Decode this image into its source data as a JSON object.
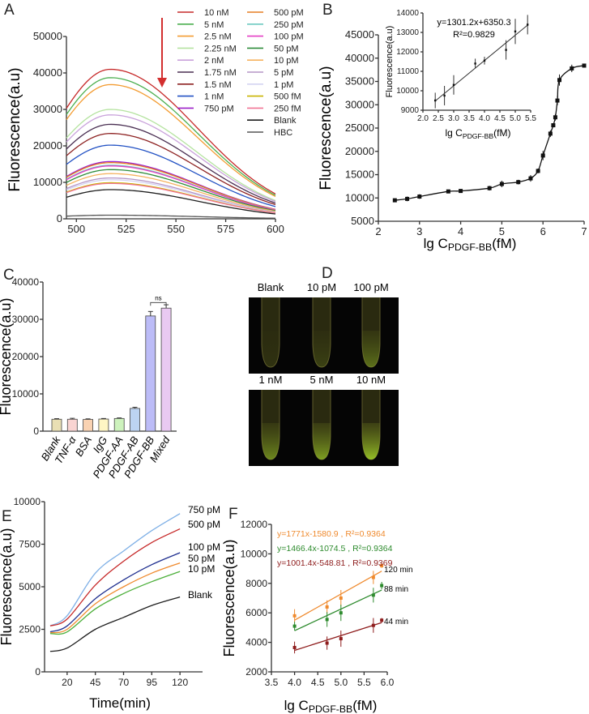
{
  "chart_data": [
    {
      "panel": "A",
      "type": "line",
      "xlabel": "",
      "ylabel": "Fluorescence(a.u)",
      "xlim": [
        495,
        600
      ],
      "ylim": [
        0,
        50000
      ],
      "xticks": [
        "500",
        "525",
        "550",
        "575",
        "600"
      ],
      "yticks": [
        "0",
        "10000",
        "20000",
        "30000",
        "40000",
        "50000"
      ],
      "peak_x": 517,
      "series": [
        {
          "name": "10 nM",
          "peak": 41000,
          "color": "#c62828"
        },
        {
          "name": "5 nM",
          "peak": 38700,
          "color": "#4caf50"
        },
        {
          "name": "2.5 nM",
          "peak": 36800,
          "color": "#f39c32"
        },
        {
          "name": "2.25 nM",
          "peak": 30000,
          "color": "#b5e3a0"
        },
        {
          "name": "2 nM",
          "peak": 28500,
          "color": "#c9a2db"
        },
        {
          "name": "1.75 nM",
          "peak": 25900,
          "color": "#4a2f52"
        },
        {
          "name": "1.5 nM",
          "peak": 23400,
          "color": "#8e2323"
        },
        {
          "name": "1 nM",
          "peak": 20200,
          "color": "#2352c4"
        },
        {
          "name": "750 pM",
          "peak": 15700,
          "color": "#9b1fc8"
        },
        {
          "name": "500 pM",
          "peak": 15400,
          "color": "#e67e22"
        },
        {
          "name": "250 pM",
          "peak": 14700,
          "color": "#6ec9c0"
        },
        {
          "name": "100 pM",
          "peak": 14500,
          "color": "#e53fc5"
        },
        {
          "name": "50 pM",
          "peak": 13500,
          "color": "#2e8b3a"
        },
        {
          "name": "10 pM",
          "peak": 12400,
          "color": "#f5b25f"
        },
        {
          "name": "5 pM",
          "peak": 11200,
          "color": "#b595c6"
        },
        {
          "name": "1 pM",
          "peak": 10700,
          "color": "#d4d4f2"
        },
        {
          "name": "500 fM",
          "peak": 9900,
          "color": "#c9b400"
        },
        {
          "name": "250 fM",
          "peak": 9700,
          "color": "#f07595"
        },
        {
          "name": "Blank",
          "peak": 8000,
          "color": "#1e1e1e"
        },
        {
          "name": "HBC",
          "peak": 1000,
          "color": "#555555"
        }
      ]
    },
    {
      "panel": "B",
      "type": "scatter",
      "xlabel": {
        "main": "lg C",
        "sub": "PDGF-BB",
        "unit": "(fM)"
      },
      "ylabel": "Fluorescence(a.u)",
      "xlim": [
        2,
        7
      ],
      "ylim": [
        5000,
        45000
      ],
      "xticks": [
        "2",
        "3",
        "4",
        "5",
        "6",
        "7"
      ],
      "yticks": [
        "5000",
        "10000",
        "15000",
        "20000",
        "25000",
        "30000",
        "35000",
        "40000",
        "45000"
      ],
      "x": [
        2.4,
        2.7,
        3.0,
        3.7,
        4.0,
        4.7,
        5.0,
        5.4,
        5.7,
        5.88,
        6.0,
        6.18,
        6.25,
        6.3,
        6.35,
        6.4,
        6.7,
        7.0
      ],
      "y": [
        9500,
        9800,
        10300,
        11400,
        11500,
        12100,
        13000,
        13400,
        14200,
        15800,
        19100,
        23800,
        25600,
        27300,
        30900,
        35300,
        37800,
        38400
      ],
      "err": [
        400,
        500,
        500,
        200,
        200,
        500,
        700,
        500,
        700,
        500,
        1000,
        700,
        400,
        700,
        1000,
        1200,
        800,
        400
      ],
      "inset": {
        "type": "scatter",
        "xlabel": {
          "main": "lg C",
          "sub": "PDGF-BB",
          "unit": "(fM)"
        },
        "ylabel": "Fluorescence(a.u)",
        "xlim": [
          2.0,
          5.5
        ],
        "ylim": [
          9000,
          14000
        ],
        "xticks": [
          "2.0",
          "2.5",
          "3.0",
          "3.5",
          "4.0",
          "4.5",
          "5.0",
          "5.5"
        ],
        "yticks": [
          "9000",
          "10000",
          "11000",
          "12000",
          "13000",
          "14000"
        ],
        "x": [
          2.4,
          2.7,
          3.0,
          3.7,
          4.0,
          4.7,
          5.0,
          5.4
        ],
        "y": [
          9500,
          9750,
          10300,
          11400,
          11550,
          12100,
          13050,
          13400
        ],
        "err": [
          400,
          500,
          500,
          250,
          200,
          500,
          650,
          500
        ],
        "fit": {
          "slope": 1301.2,
          "intercept": 6350.3
        },
        "equation": "y=1301.2x+6350.3",
        "r2": "R²=0.9829"
      }
    },
    {
      "panel": "C",
      "type": "bar",
      "ylabel": "Fluorescence(a.u)",
      "ylim": [
        0,
        40000
      ],
      "yticks": [
        "0",
        "10000",
        "20000",
        "30000",
        "40000"
      ],
      "categories": [
        "Blank",
        "TNF-α",
        "BSA",
        "IgG",
        "PDGF-AA",
        "PDGF-AB",
        "PDGF-BB",
        "Mixed"
      ],
      "values": [
        3200,
        3200,
        3150,
        3250,
        3400,
        6100,
        30900,
        33000
      ],
      "err": [
        150,
        250,
        150,
        150,
        150,
        300,
        1200,
        900
      ],
      "colors": [
        "#e9dfb4",
        "#f9d4d2",
        "#f9d2b2",
        "#fff6c4",
        "#cdf2bd",
        "#bcd3f2",
        "#bcbcf7",
        "#e9c9f1"
      ],
      "annotation": "ns"
    },
    {
      "panel": "D",
      "type": "image",
      "labels_top": [
        "Blank",
        "10 pM",
        "100 pM"
      ],
      "labels_bottom": [
        "1 nM",
        "5 nM",
        "10 nM"
      ]
    },
    {
      "panel": "E",
      "type": "line",
      "xlabel": "Time(min)",
      "ylabel": "Fluorescence(a.u)",
      "xlim": [
        0,
        140
      ],
      "ylim": [
        0,
        10000
      ],
      "xticks": [
        "20",
        "45",
        "70",
        "95",
        "120"
      ],
      "yticks": [
        "0",
        "2500",
        "5000",
        "7500",
        "10000"
      ],
      "x": [
        5,
        20,
        45,
        70,
        95,
        120
      ],
      "series": [
        {
          "name": "750 pM",
          "y": [
            2700,
            3300,
            5800,
            7100,
            8300,
            9300
          ],
          "color": "#7fb0e6"
        },
        {
          "name": "500 pM",
          "y": [
            2700,
            3100,
            5100,
            6500,
            7600,
            8400
          ],
          "color": "#c62828"
        },
        {
          "name": "100 pM",
          "y": [
            2350,
            2700,
            4300,
            5400,
            6300,
            7000
          ],
          "color": "#1f2f8f"
        },
        {
          "name": "50 pM",
          "y": [
            2300,
            2500,
            4000,
            5000,
            5800,
            6400
          ],
          "color": "#ef8a2e"
        },
        {
          "name": "10 pM",
          "y": [
            2250,
            2350,
            3700,
            4600,
            5300,
            5900
          ],
          "color": "#4caf3a"
        },
        {
          "name": "Blank",
          "y": [
            1200,
            1400,
            2500,
            3200,
            3900,
            4400
          ],
          "color": "#1e1e1e"
        }
      ]
    },
    {
      "panel": "F",
      "type": "scatter",
      "xlabel": {
        "main": "lg C",
        "sub": "PDGF-BB",
        "unit": "(fM)"
      },
      "ylabel": "Fluorescence(a.u)",
      "xlim": [
        3.5,
        6.0
      ],
      "ylim": [
        2000,
        12000
      ],
      "xticks": [
        "3.5",
        "4.0",
        "4.5",
        "5.0",
        "5.5",
        "6.0"
      ],
      "yticks": [
        "2000",
        "4000",
        "6000",
        "8000",
        "10000",
        "12000"
      ],
      "x": [
        4.0,
        4.7,
        5.0,
        5.7,
        5.88
      ],
      "series": [
        {
          "name": "120 min",
          "y": [
            5800,
            6400,
            7000,
            8400,
            9200
          ],
          "err": [
            450,
            450,
            550,
            450,
            150
          ],
          "color": "#ef8a2e",
          "fit": {
            "slope": 1771,
            "intercept": -1580.9
          },
          "equation": "y=1771x-1580.9 , R²=0.9364"
        },
        {
          "name": "88 min",
          "y": [
            5100,
            5550,
            6000,
            7200,
            7850
          ],
          "err": [
            300,
            500,
            550,
            500,
            250
          ],
          "color": "#2e8b2e",
          "fit": {
            "slope": 1466.4,
            "intercept": -1074.5
          },
          "equation": "y=1466.4x-1074.5 , R²=0.9364"
        },
        {
          "name": "44 min",
          "y": [
            3650,
            3950,
            4250,
            5150,
            5500
          ],
          "err": [
            400,
            450,
            550,
            500,
            150
          ],
          "color": "#8e1c1c",
          "fit": {
            "slope": 1001.4,
            "intercept": -548.81
          },
          "equation": "y=1001.4x-548.81 , R²=0.9369"
        }
      ]
    }
  ]
}
